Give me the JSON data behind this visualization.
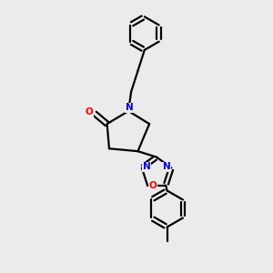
{
  "bg_color": "#ebebeb",
  "bond_color": "#000000",
  "n_color": "#0000ff",
  "o_color": "#ff0000",
  "line_width": 1.6,
  "figsize": [
    3.0,
    3.0
  ],
  "dpi": 100,
  "xlim": [
    0,
    10
  ],
  "ylim": [
    0,
    10
  ]
}
